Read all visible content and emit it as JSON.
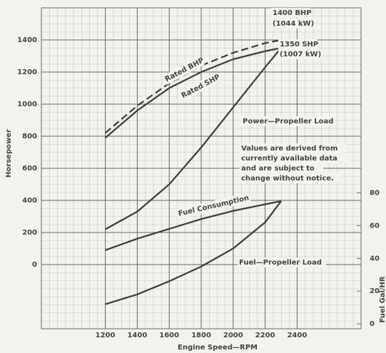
{
  "chart_data": {
    "type": "line",
    "x_label": "Engine Speed—RPM",
    "y_label": "Horsepower",
    "y2_label": "Fuel Gal/HR",
    "x": [
      1200,
      1400,
      1600,
      1800,
      2000,
      2200,
      2300
    ],
    "series": [
      {
        "name": "Rated BHP",
        "color": "#3a3a3a",
        "style": "dashed",
        "values": [
          820,
          990,
          1130,
          1240,
          1320,
          1380,
          1400
        ]
      },
      {
        "name": "Rated SHP",
        "color": "#3a3a3a",
        "style": "solid",
        "values": [
          790,
          960,
          1100,
          1200,
          1280,
          1330,
          1350
        ]
      },
      {
        "name": "Power—Propeller Load",
        "color": "#3a3a3a",
        "style": "solid",
        "values": [
          220,
          330,
          500,
          730,
          980,
          1230,
          1350
        ]
      },
      {
        "name": "Fuel Consumption",
        "color": "#3a3a3a",
        "style": "solid",
        "axis": "y2",
        "values": [
          45,
          52,
          58,
          64,
          69,
          73,
          75
        ]
      },
      {
        "name": "Fuel—Propeller Load",
        "color": "#3a3a3a",
        "style": "solid",
        "axis": "y2",
        "values": [
          12,
          18,
          26,
          35,
          46,
          62,
          75
        ]
      }
    ],
    "annotations": [
      "1400 BHP",
      "(1044 kW)",
      "1350 SHP",
      "(1007 kW)",
      "Values are derived from",
      "currently available data",
      "and are subject to",
      "change without notice."
    ],
    "xlim": [
      800,
      2800
    ],
    "xticks": [
      1200,
      1400,
      1600,
      1800,
      2000,
      2200,
      2400
    ],
    "ylim": [
      -400,
      1600
    ],
    "yticks": [
      0,
      200,
      400,
      600,
      800,
      1000,
      1200,
      1400
    ],
    "y2lim": [
      -3,
      193
    ],
    "y2ticks": [
      0,
      20,
      40,
      60,
      80
    ],
    "grid": true
  }
}
